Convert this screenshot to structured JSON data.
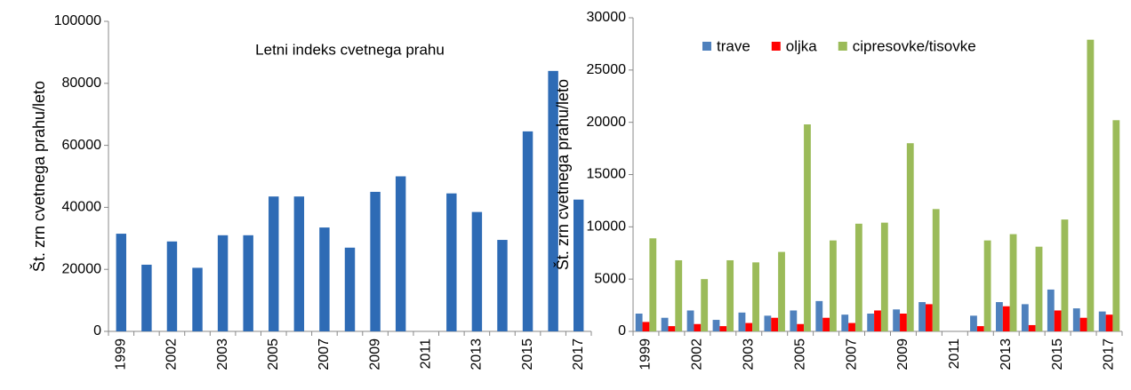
{
  "chart_data": [
    {
      "type": "bar",
      "title": "Letni indeks cvetnega prahu",
      "y_label": "Št. zrn cvetnega prahu/leto",
      "categories": [
        "1999",
        null,
        "2002",
        null,
        "2003",
        null,
        "2005",
        null,
        "2007",
        null,
        "2009",
        null,
        "2011",
        null,
        "2013",
        null,
        "2015",
        null,
        "2017"
      ],
      "values": [
        31500,
        21500,
        29000,
        20500,
        31000,
        31000,
        43500,
        43500,
        33500,
        27000,
        45000,
        50000,
        null,
        44500,
        38500,
        29500,
        64500,
        84000,
        42500
      ],
      "color": "#2e6bb5",
      "ylim": [
        0,
        100000
      ],
      "yticks": [
        0,
        20000,
        40000,
        60000,
        80000,
        100000
      ],
      "grid": false
    },
    {
      "type": "bar",
      "y_label": "Št. zrn cvetnega prahu/leto",
      "categories": [
        "1999",
        null,
        "2002",
        null,
        "2003",
        null,
        "2005",
        null,
        "2007",
        null,
        "2009",
        null,
        "2011",
        null,
        "2013",
        null,
        "2015",
        null,
        "2017"
      ],
      "series": [
        {
          "name": "trave",
          "color": "#4f81bd",
          "values": [
            1700,
            1300,
            2000,
            1100,
            1800,
            1500,
            2000,
            2900,
            1600,
            1700,
            2100,
            2800,
            null,
            1500,
            2800,
            2600,
            4000,
            2200,
            1900
          ]
        },
        {
          "name": "oljka",
          "color": "#ff0000",
          "values": [
            900,
            500,
            700,
            500,
            800,
            1300,
            700,
            1300,
            800,
            2000,
            1700,
            2600,
            null,
            500,
            2400,
            600,
            2000,
            1300,
            1600
          ]
        },
        {
          "name": "cipresovke/tisovke",
          "color": "#9bbb59",
          "values": [
            8900,
            6800,
            5000,
            6800,
            6600,
            7600,
            19800,
            8700,
            10300,
            10400,
            18000,
            11700,
            null,
            8700,
            9300,
            8100,
            10700,
            27900,
            20200
          ]
        }
      ],
      "ylim": [
        0,
        30000
      ],
      "yticks": [
        0,
        5000,
        10000,
        15000,
        20000,
        25000,
        30000
      ],
      "grid": false,
      "legend": "top"
    }
  ]
}
